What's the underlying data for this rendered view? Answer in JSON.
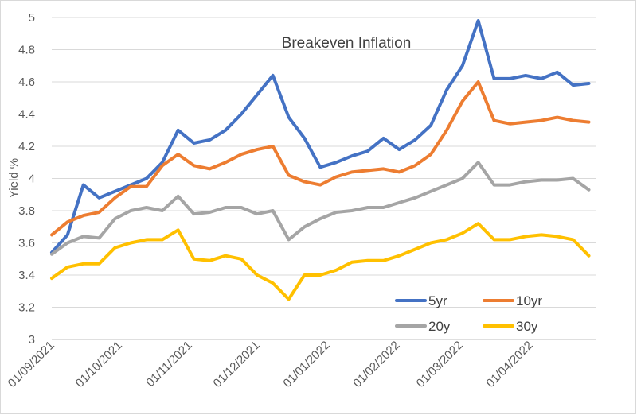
{
  "chart_data": {
    "type": "line",
    "title": "Breakeven Inflation",
    "xlabel": "",
    "ylabel": "Yield %",
    "ylim": [
      3,
      5
    ],
    "yticks": [
      "3",
      "3.2",
      "3.4",
      "3.6",
      "3.8",
      "4",
      "4.2",
      "4.4",
      "4.6",
      "4.8",
      "5"
    ],
    "grid": "horizontal",
    "legend_position": "bottom-right-inside",
    "xlim": [
      "2021-09-01",
      "2022-04-30"
    ],
    "x_tick_labels": [
      "01/09/2021",
      "01/10/2021",
      "01/11/2021",
      "01/12/2021",
      "01/01/2022",
      "01/02/2022",
      "01/03/2022",
      "01/04/2022"
    ],
    "x_tick_dates": [
      "2021-09-01",
      "2021-10-01",
      "2021-11-01",
      "2021-12-01",
      "2022-01-01",
      "2022-02-01",
      "2022-03-01",
      "2022-04-01"
    ],
    "x": [
      "2021-09-01",
      "2021-09-08",
      "2021-09-15",
      "2021-09-22",
      "2021-09-29",
      "2021-10-06",
      "2021-10-13",
      "2021-10-20",
      "2021-10-27",
      "2021-11-03",
      "2021-11-10",
      "2021-11-17",
      "2021-11-24",
      "2021-12-01",
      "2021-12-08",
      "2021-12-15",
      "2021-12-22",
      "2021-12-29",
      "2022-01-05",
      "2022-01-12",
      "2022-01-19",
      "2022-01-26",
      "2022-02-02",
      "2022-02-09",
      "2022-02-16",
      "2022-02-23",
      "2022-03-02",
      "2022-03-09",
      "2022-03-16",
      "2022-03-23",
      "2022-03-30",
      "2022-04-06",
      "2022-04-13",
      "2022-04-20",
      "2022-04-27"
    ],
    "series": [
      {
        "name": "5yr",
        "color": "#4472C4",
        "values": [
          3.54,
          3.65,
          3.96,
          3.88,
          3.92,
          3.96,
          4.0,
          4.1,
          4.3,
          4.22,
          4.24,
          4.3,
          4.4,
          4.52,
          4.64,
          4.38,
          4.25,
          4.07,
          4.1,
          4.14,
          4.17,
          4.25,
          4.18,
          4.24,
          4.33,
          4.55,
          4.7,
          4.98,
          4.62,
          4.62,
          4.64,
          4.62,
          4.66,
          4.58,
          4.59
        ]
      },
      {
        "name": "10yr",
        "color": "#ED7D31",
        "values": [
          3.65,
          3.73,
          3.77,
          3.79,
          3.88,
          3.95,
          3.95,
          4.08,
          4.15,
          4.08,
          4.06,
          4.1,
          4.15,
          4.18,
          4.2,
          4.02,
          3.98,
          3.96,
          4.01,
          4.04,
          4.05,
          4.06,
          4.04,
          4.08,
          4.15,
          4.3,
          4.48,
          4.6,
          4.36,
          4.34,
          4.35,
          4.36,
          4.38,
          4.36,
          4.35
        ]
      },
      {
        "name": "20y",
        "color": "#A5A5A5",
        "values": [
          3.53,
          3.6,
          3.64,
          3.63,
          3.75,
          3.8,
          3.82,
          3.8,
          3.89,
          3.78,
          3.79,
          3.82,
          3.82,
          3.78,
          3.8,
          3.62,
          3.7,
          3.75,
          3.79,
          3.8,
          3.82,
          3.82,
          3.85,
          3.88,
          3.92,
          3.96,
          4.0,
          4.1,
          3.96,
          3.96,
          3.98,
          3.99,
          3.99,
          4.0,
          3.93
        ]
      },
      {
        "name": "30y",
        "color": "#FFC000",
        "values": [
          3.38,
          3.45,
          3.47,
          3.47,
          3.57,
          3.6,
          3.62,
          3.62,
          3.68,
          3.5,
          3.49,
          3.52,
          3.5,
          3.4,
          3.35,
          3.25,
          3.4,
          3.4,
          3.43,
          3.48,
          3.49,
          3.49,
          3.52,
          3.56,
          3.6,
          3.62,
          3.66,
          3.72,
          3.62,
          3.62,
          3.64,
          3.65,
          3.64,
          3.62,
          3.52
        ]
      }
    ]
  }
}
